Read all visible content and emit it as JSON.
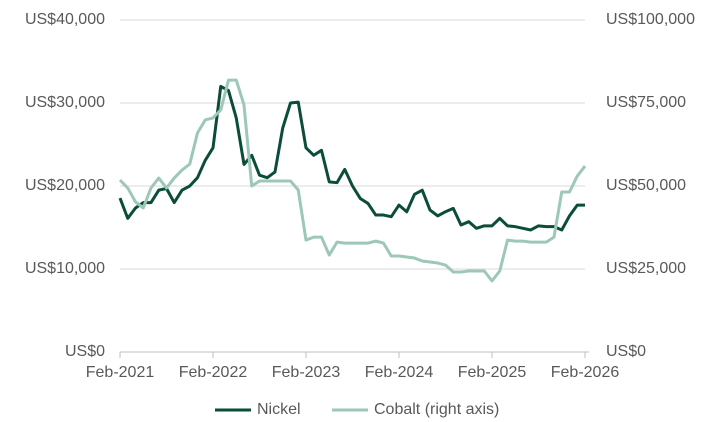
{
  "chart_data": {
    "type": "line",
    "x": [
      "2021-02",
      "2021-03",
      "2021-04",
      "2021-05",
      "2021-06",
      "2021-07",
      "2021-08",
      "2021-09",
      "2021-10",
      "2021-11",
      "2021-12",
      "2022-01",
      "2022-02",
      "2022-03",
      "2022-04",
      "2022-05",
      "2022-06",
      "2022-07",
      "2022-08",
      "2022-09",
      "2022-10",
      "2022-11",
      "2022-12",
      "2023-01",
      "2023-02",
      "2023-03",
      "2023-04",
      "2023-05",
      "2023-06",
      "2023-07",
      "2023-08",
      "2023-09",
      "2023-10",
      "2023-11",
      "2023-12",
      "2024-01",
      "2024-02",
      "2024-03",
      "2024-04",
      "2024-05",
      "2024-06",
      "2024-07",
      "2024-08",
      "2024-09",
      "2024-10",
      "2024-11",
      "2024-12",
      "2025-01",
      "2025-02",
      "2025-03",
      "2025-04",
      "2025-05",
      "2025-06",
      "2025-07",
      "2025-08",
      "2025-09",
      "2025-10",
      "2025-11",
      "2025-12",
      "2026-01",
      "2026-02"
    ],
    "xticks": [
      {
        "value": "2021-02",
        "label": "Feb-2021"
      },
      {
        "value": "2022-02",
        "label": "Feb-2022"
      },
      {
        "value": "2023-02",
        "label": "Feb-2023"
      },
      {
        "value": "2024-02",
        "label": "Feb-2024"
      },
      {
        "value": "2025-02",
        "label": "Feb-2025"
      },
      {
        "value": "2026-02",
        "label": "Feb-2026"
      }
    ],
    "ylim": [
      0,
      40000
    ],
    "yticks": [
      {
        "value": 0,
        "label": "US$0"
      },
      {
        "value": 10000,
        "label": "US$10,000"
      },
      {
        "value": 20000,
        "label": "US$20,000"
      },
      {
        "value": 30000,
        "label": "US$30,000"
      },
      {
        "value": 40000,
        "label": "US$40,000"
      }
    ],
    "y2lim": [
      0,
      100000
    ],
    "y2ticks": [
      {
        "value": 0,
        "label": "US$0"
      },
      {
        "value": 25000,
        "label": "US$25,000"
      },
      {
        "value": 50000,
        "label": "US$50,000"
      },
      {
        "value": 75000,
        "label": "US$75,000"
      },
      {
        "value": 100000,
        "label": "US$100,000"
      }
    ],
    "grid": true,
    "legend": "bottom",
    "series": [
      {
        "name": "Nickel",
        "color": "#0b4d3a",
        "values": [
          18550,
          16100,
          17350,
          18000,
          18000,
          19500,
          19700,
          18000,
          19500,
          20000,
          21000,
          23100,
          24600,
          32000,
          31500,
          28200,
          22600,
          23700,
          21300,
          21000,
          21700,
          27000,
          30000,
          30100,
          24600,
          23700,
          24300,
          20500,
          20400,
          22000,
          20000,
          18500,
          17900,
          16500,
          16500,
          16300,
          17700,
          16900,
          19000,
          19500,
          17100,
          16400,
          16900,
          17300,
          15300,
          15700,
          14900,
          15200,
          15200,
          16100,
          15200,
          15100,
          14900,
          14700,
          15200,
          15100,
          15100,
          14700,
          16400,
          17700,
          17700
        ]
      },
      {
        "name": "Cobalt (right axis)",
        "color": "#9dc8b6",
        "axis": "y2",
        "values": [
          51800,
          49400,
          45200,
          43400,
          49400,
          52400,
          49400,
          52400,
          54800,
          56600,
          66000,
          69900,
          70500,
          72900,
          81900,
          81900,
          74400,
          50000,
          51500,
          51500,
          51500,
          51500,
          51500,
          48800,
          33700,
          34600,
          34600,
          29200,
          33100,
          32800,
          32800,
          32800,
          32800,
          33400,
          32800,
          28900,
          28900,
          28600,
          28300,
          27400,
          27100,
          26800,
          26200,
          24100,
          24100,
          24400,
          24400,
          24400,
          21400,
          24400,
          33700,
          33400,
          33400,
          33100,
          33100,
          33100,
          34600,
          48200,
          48200,
          53000,
          56000
        ]
      }
    ]
  }
}
